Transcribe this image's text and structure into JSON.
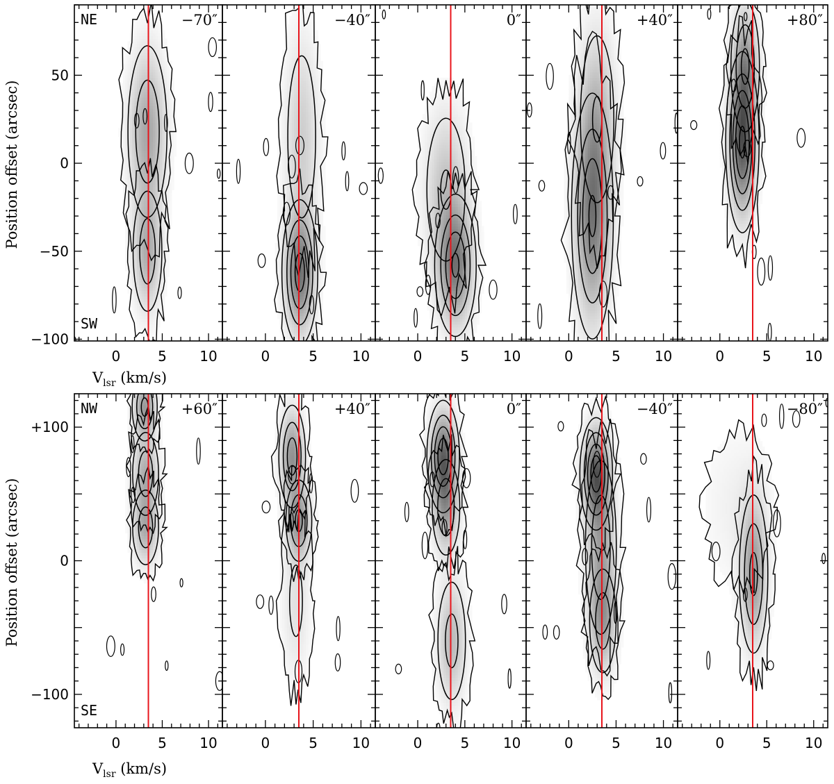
{
  "chart_data": [
    {
      "type": "contour",
      "row": "top",
      "xlabel": "V",
      "xlabel_sub": "lsr",
      "xlabel_unit": " (km/s)",
      "ylabel": "Position offset (arcsec)",
      "xlim": [
        -4.5,
        11.5
      ],
      "ylim": [
        -101,
        90
      ],
      "xticks": [
        0,
        5,
        10
      ],
      "xtick_labels": [
        "0",
        "5",
        "10"
      ],
      "yticks": [
        50,
        0,
        -50,
        -100
      ],
      "ytick_labels": [
        "50",
        "0",
        "−50",
        "−100"
      ],
      "direction_top": "NE",
      "direction_bottom": "SW",
      "reference_velocity": 3.5,
      "panels": [
        {
          "label": "−70″",
          "peaks": [
            {
              "v": 3.4,
              "p": 18,
              "sv": 1.3,
              "sp": 30,
              "a": 0.45
            },
            {
              "v": 3.4,
              "p": -50,
              "sv": 1.0,
              "sp": 22,
              "a": 0.4
            }
          ]
        },
        {
          "label": "−40″",
          "peaks": [
            {
              "v": 3.6,
              "p": -62,
              "sv": 1.0,
              "sp": 22,
              "a": 0.7
            },
            {
              "v": 3.8,
              "p": 15,
              "sv": 1.2,
              "sp": 38,
              "a": 0.25
            }
          ]
        },
        {
          "label": "0″",
          "peaks": [
            {
              "v": 4.0,
              "p": -58,
              "sv": 1.2,
              "sp": 22,
              "a": 0.65
            },
            {
              "v": 3.0,
              "p": -15,
              "sv": 1.5,
              "sp": 30,
              "a": 0.3
            }
          ]
        },
        {
          "label": "+40″",
          "peaks": [
            {
              "v": 2.5,
              "p": -30,
              "sv": 1.2,
              "sp": 38,
              "a": 0.65
            },
            {
              "v": 3.0,
              "p": 25,
              "sv": 1.3,
              "sp": 35,
              "a": 0.3
            }
          ]
        },
        {
          "label": "+80″",
          "peaks": [
            {
              "v": 2.4,
              "p": 12,
              "sv": 0.9,
              "sp": 26,
              "a": 0.85
            },
            {
              "v": 2.7,
              "p": 55,
              "sv": 0.9,
              "sp": 22,
              "a": 0.5
            }
          ]
        }
      ]
    },
    {
      "type": "contour",
      "row": "bottom",
      "xlabel": "V",
      "xlabel_sub": "lsr",
      "xlabel_unit": " (km/s)",
      "ylabel": "Position offset (arcsec)",
      "xlim": [
        -4.5,
        11.5
      ],
      "ylim": [
        -125,
        125
      ],
      "xticks": [
        0,
        5,
        10
      ],
      "xtick_labels": [
        "0",
        "5",
        "10"
      ],
      "yticks": [
        100,
        0,
        -100
      ],
      "ytick_labels": [
        "+100",
        "0",
        "−100"
      ],
      "direction_top": "NW",
      "direction_bottom": "SE",
      "reference_velocity": 3.5,
      "panels": [
        {
          "label": "+60″",
          "peaks": [
            {
              "v": 3.2,
              "p": 25,
              "sv": 0.9,
              "sp": 18,
              "a": 0.4
            },
            {
              "v": 3.2,
              "p": 65,
              "sv": 0.9,
              "sp": 20,
              "a": 0.4
            },
            {
              "v": 3.1,
              "p": 115,
              "sv": 0.8,
              "sp": 15,
              "a": 0.5
            }
          ]
        },
        {
          "label": "+40″",
          "peaks": [
            {
              "v": 2.8,
              "p": 78,
              "sv": 0.8,
              "sp": 22,
              "a": 0.55
            },
            {
              "v": 3.5,
              "p": 30,
              "sv": 0.8,
              "sp": 18,
              "a": 0.5
            },
            {
              "v": 3.2,
              "p": -30,
              "sv": 1.0,
              "sp": 40,
              "a": 0.15
            }
          ]
        },
        {
          "label": "0″",
          "peaks": [
            {
              "v": 2.7,
              "p": 78,
              "sv": 0.9,
              "sp": 22,
              "a": 0.75
            },
            {
              "v": 3.0,
              "p": 40,
              "sv": 0.9,
              "sp": 22,
              "a": 0.45
            },
            {
              "v": 3.6,
              "p": -60,
              "sv": 1.0,
              "sp": 30,
              "a": 0.35
            }
          ]
        },
        {
          "label": "−40″",
          "peaks": [
            {
              "v": 2.9,
              "p": 65,
              "sv": 0.9,
              "sp": 22,
              "a": 0.75
            },
            {
              "v": 3.4,
              "p": 10,
              "sv": 1.0,
              "sp": 40,
              "a": 0.45
            },
            {
              "v": 3.6,
              "p": -45,
              "sv": 0.9,
              "sp": 25,
              "a": 0.4
            }
          ]
        },
        {
          "label": "−80″",
          "peaks": [
            {
              "v": 3.6,
              "p": -10,
              "sv": 0.9,
              "sp": 35,
              "a": 0.5
            },
            {
              "v": 2.0,
              "p": 40,
              "sv": 2.5,
              "sp": 40,
              "a": 0.08
            }
          ]
        }
      ]
    }
  ],
  "colors": {
    "reference_line": "#e8141b",
    "contour": "#000000",
    "frame": "#000000",
    "grey_max": "#3c3c3c"
  }
}
